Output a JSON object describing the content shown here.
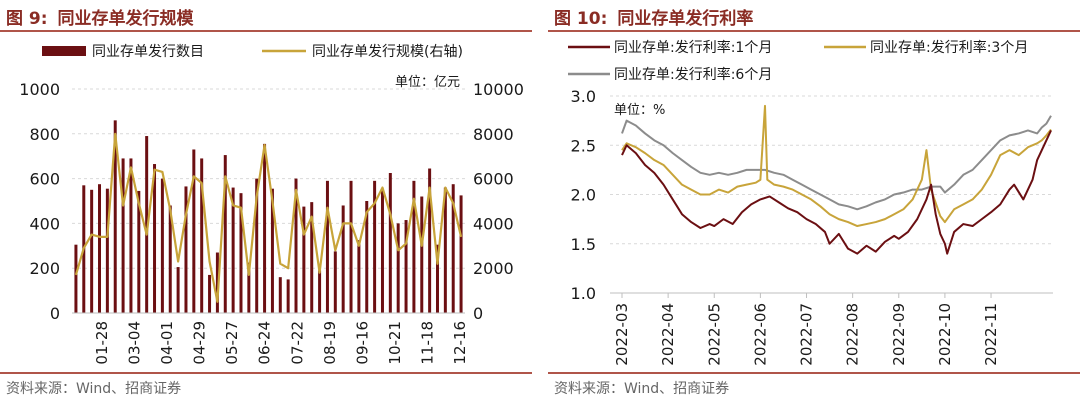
{
  "colors": {
    "title": "#8a2c24",
    "rule": "#b0554a",
    "bar": "#6b0f12",
    "gold": "#c8a43a",
    "rate1m": "#6b0f12",
    "rate3m": "#c8a43a",
    "rate6m": "#8c8c8c",
    "grid": "#d9d9d9"
  },
  "left": {
    "fig_label": "图 9:",
    "fig_title": "同业存单发行规模",
    "source": "资料来源：Wind、招商证券"
  },
  "right": {
    "fig_label": "图 10:",
    "fig_title": "同业存单发行利率",
    "source": "资料来源：Wind、招商证券"
  },
  "chart_data": [
    {
      "type": "bar",
      "title": "同业存单发行规模",
      "unit_label": "单位：亿元",
      "ylim": [
        0,
        1000
      ],
      "y2lim": [
        0,
        10000
      ],
      "yticks": [
        0,
        200,
        400,
        600,
        800,
        1000
      ],
      "y2ticks": [
        0,
        2000,
        4000,
        6000,
        8000,
        10000
      ],
      "tick_labels": [
        "01-28",
        "03-04",
        "04-01",
        "04-29",
        "05-27",
        "06-24",
        "07-22",
        "08-19",
        "09-16",
        "10-21",
        "11-18",
        "12-16"
      ],
      "series": [
        {
          "name": "同业存单发行数目",
          "axis": "left",
          "kind": "bar",
          "values": [
            305,
            570,
            550,
            575,
            555,
            860,
            690,
            690,
            545,
            790,
            665,
            600,
            480,
            205,
            565,
            730,
            690,
            170,
            270,
            705,
            560,
            535,
            225,
            600,
            755,
            555,
            160,
            150,
            600,
            475,
            495,
            190,
            590,
            275,
            480,
            590,
            325,
            500,
            590,
            555,
            625,
            400,
            415,
            590,
            520,
            645,
            305,
            560,
            575,
            525
          ]
        },
        {
          "name": "同业存单发行规模(右轴)",
          "axis": "right",
          "kind": "line",
          "values": [
            1700,
            2900,
            3500,
            3400,
            3400,
            8000,
            4800,
            6500,
            4900,
            3500,
            6400,
            6300,
            4600,
            2300,
            4400,
            6100,
            5800,
            2300,
            500,
            6100,
            4800,
            4700,
            1700,
            5200,
            7500,
            5000,
            2200,
            2000,
            5500,
            3500,
            4300,
            1800,
            4700,
            2800,
            4000,
            4000,
            3000,
            4500,
            4900,
            5600,
            4400,
            2800,
            3100,
            5100,
            3000,
            5600,
            2200,
            5600,
            4900,
            3400
          ]
        }
      ]
    },
    {
      "type": "line",
      "title": "同业存单发行利率",
      "unit_label": "单位：%",
      "ylim": [
        1.0,
        3.0
      ],
      "yticks": [
        "1.0",
        "1.5",
        "2.0",
        "2.5",
        "3.0"
      ],
      "x_tick_labels": [
        "2022-03",
        "2022-04",
        "2022-05",
        "2022-06",
        "2022-07",
        "2022-08",
        "2022-09",
        "2022-10",
        "2022-11"
      ],
      "x_range_months": [
        0,
        9.3
      ],
      "series": [
        {
          "name": "同业存单:发行利率:1个月",
          "points": [
            [
              0.0,
              2.4
            ],
            [
              0.1,
              2.5
            ],
            [
              0.3,
              2.42
            ],
            [
              0.5,
              2.3
            ],
            [
              0.7,
              2.22
            ],
            [
              0.9,
              2.1
            ],
            [
              1.1,
              1.95
            ],
            [
              1.3,
              1.8
            ],
            [
              1.5,
              1.72
            ],
            [
              1.7,
              1.66
            ],
            [
              1.9,
              1.7
            ],
            [
              2.0,
              1.68
            ],
            [
              2.2,
              1.75
            ],
            [
              2.4,
              1.7
            ],
            [
              2.6,
              1.82
            ],
            [
              2.8,
              1.9
            ],
            [
              3.0,
              1.95
            ],
            [
              3.2,
              1.98
            ],
            [
              3.4,
              1.92
            ],
            [
              3.6,
              1.86
            ],
            [
              3.8,
              1.82
            ],
            [
              4.0,
              1.75
            ],
            [
              4.2,
              1.7
            ],
            [
              4.4,
              1.62
            ],
            [
              4.5,
              1.5
            ],
            [
              4.7,
              1.6
            ],
            [
              4.9,
              1.45
            ],
            [
              5.1,
              1.4
            ],
            [
              5.3,
              1.48
            ],
            [
              5.5,
              1.42
            ],
            [
              5.7,
              1.52
            ],
            [
              5.9,
              1.58
            ],
            [
              6.0,
              1.55
            ],
            [
              6.2,
              1.62
            ],
            [
              6.4,
              1.75
            ],
            [
              6.6,
              1.95
            ],
            [
              6.7,
              2.1
            ],
            [
              6.8,
              1.8
            ],
            [
              6.9,
              1.6
            ],
            [
              7.0,
              1.5
            ],
            [
              7.05,
              1.4
            ],
            [
              7.2,
              1.62
            ],
            [
              7.4,
              1.7
            ],
            [
              7.6,
              1.68
            ],
            [
              7.8,
              1.75
            ],
            [
              8.0,
              1.82
            ],
            [
              8.2,
              1.9
            ],
            [
              8.4,
              2.05
            ],
            [
              8.5,
              2.1
            ],
            [
              8.7,
              1.95
            ],
            [
              8.9,
              2.15
            ],
            [
              9.0,
              2.35
            ],
            [
              9.1,
              2.45
            ],
            [
              9.2,
              2.55
            ],
            [
              9.3,
              2.65
            ]
          ]
        },
        {
          "name": "同业存单:发行利率:3个月",
          "points": [
            [
              0.0,
              2.45
            ],
            [
              0.1,
              2.52
            ],
            [
              0.3,
              2.48
            ],
            [
              0.5,
              2.42
            ],
            [
              0.7,
              2.35
            ],
            [
              0.9,
              2.3
            ],
            [
              1.1,
              2.2
            ],
            [
              1.3,
              2.1
            ],
            [
              1.5,
              2.05
            ],
            [
              1.7,
              2.0
            ],
            [
              1.9,
              2.0
            ],
            [
              2.1,
              2.05
            ],
            [
              2.3,
              2.02
            ],
            [
              2.5,
              2.08
            ],
            [
              2.7,
              2.1
            ],
            [
              2.9,
              2.12
            ],
            [
              3.0,
              2.15
            ],
            [
              3.1,
              2.9
            ],
            [
              3.15,
              2.15
            ],
            [
              3.3,
              2.1
            ],
            [
              3.5,
              2.08
            ],
            [
              3.7,
              2.05
            ],
            [
              3.9,
              2.0
            ],
            [
              4.1,
              1.95
            ],
            [
              4.3,
              1.88
            ],
            [
              4.5,
              1.8
            ],
            [
              4.7,
              1.75
            ],
            [
              4.9,
              1.72
            ],
            [
              5.1,
              1.68
            ],
            [
              5.3,
              1.7
            ],
            [
              5.5,
              1.72
            ],
            [
              5.7,
              1.75
            ],
            [
              5.9,
              1.8
            ],
            [
              6.1,
              1.85
            ],
            [
              6.3,
              1.95
            ],
            [
              6.5,
              2.15
            ],
            [
              6.6,
              2.45
            ],
            [
              6.7,
              2.05
            ],
            [
              6.9,
              1.78
            ],
            [
              7.0,
              1.72
            ],
            [
              7.2,
              1.85
            ],
            [
              7.4,
              1.9
            ],
            [
              7.6,
              1.95
            ],
            [
              7.8,
              2.05
            ],
            [
              8.0,
              2.2
            ],
            [
              8.2,
              2.4
            ],
            [
              8.4,
              2.45
            ],
            [
              8.6,
              2.4
            ],
            [
              8.8,
              2.48
            ],
            [
              9.0,
              2.52
            ],
            [
              9.1,
              2.55
            ],
            [
              9.2,
              2.6
            ],
            [
              9.3,
              2.66
            ]
          ]
        },
        {
          "name": "同业存单:发行利率:6个月",
          "points": [
            [
              0.0,
              2.62
            ],
            [
              0.1,
              2.75
            ],
            [
              0.3,
              2.7
            ],
            [
              0.5,
              2.62
            ],
            [
              0.7,
              2.55
            ],
            [
              0.9,
              2.5
            ],
            [
              1.1,
              2.42
            ],
            [
              1.3,
              2.35
            ],
            [
              1.5,
              2.28
            ],
            [
              1.7,
              2.22
            ],
            [
              1.9,
              2.2
            ],
            [
              2.1,
              2.22
            ],
            [
              2.3,
              2.2
            ],
            [
              2.5,
              2.22
            ],
            [
              2.7,
              2.25
            ],
            [
              2.9,
              2.25
            ],
            [
              3.1,
              2.25
            ],
            [
              3.3,
              2.22
            ],
            [
              3.5,
              2.2
            ],
            [
              3.7,
              2.15
            ],
            [
              3.9,
              2.1
            ],
            [
              4.1,
              2.05
            ],
            [
              4.3,
              2.0
            ],
            [
              4.5,
              1.95
            ],
            [
              4.7,
              1.9
            ],
            [
              4.9,
              1.88
            ],
            [
              5.1,
              1.85
            ],
            [
              5.3,
              1.88
            ],
            [
              5.5,
              1.92
            ],
            [
              5.7,
              1.95
            ],
            [
              5.9,
              2.0
            ],
            [
              6.1,
              2.02
            ],
            [
              6.3,
              2.05
            ],
            [
              6.5,
              2.05
            ],
            [
              6.7,
              2.08
            ],
            [
              6.9,
              2.08
            ],
            [
              7.0,
              2.02
            ],
            [
              7.2,
              2.1
            ],
            [
              7.4,
              2.2
            ],
            [
              7.6,
              2.25
            ],
            [
              7.8,
              2.35
            ],
            [
              8.0,
              2.45
            ],
            [
              8.2,
              2.55
            ],
            [
              8.4,
              2.6
            ],
            [
              8.6,
              2.62
            ],
            [
              8.8,
              2.65
            ],
            [
              9.0,
              2.62
            ],
            [
              9.1,
              2.68
            ],
            [
              9.2,
              2.72
            ],
            [
              9.3,
              2.8
            ]
          ]
        }
      ]
    }
  ]
}
